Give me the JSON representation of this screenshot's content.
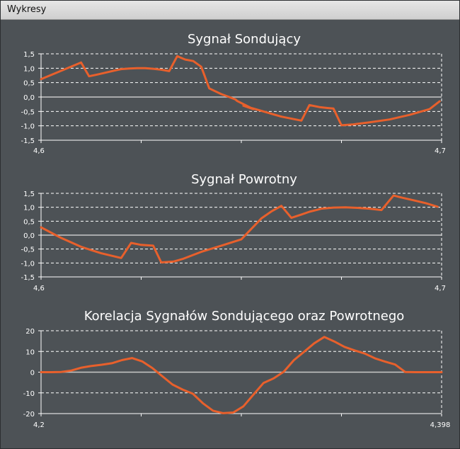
{
  "window": {
    "title": "Wykresy"
  },
  "chart_data": [
    {
      "type": "line",
      "title": "Sygnał Sondujący",
      "xlim": [
        4.6,
        4.7
      ],
      "xticks": [
        "4,6",
        "4,7"
      ],
      "ylim": [
        -1.5,
        1.5
      ],
      "yticks": [
        "1,5",
        "1,0",
        "0,5",
        "0,0",
        "-0,5",
        "-1,0",
        "-1,5"
      ],
      "grid": true,
      "series": [
        {
          "color": "#e8602c",
          "x": [
            4.6,
            4.61,
            4.612,
            4.614,
            4.619,
            4.62,
            4.622,
            4.624,
            4.626,
            4.628,
            4.63,
            4.632,
            4.634,
            4.636,
            4.638,
            4.64,
            4.642,
            4.645,
            4.647,
            4.6485,
            4.649,
            4.651,
            4.653,
            4.6505,
            4.6535,
            4.6555,
            4.66,
            4.665,
            4.667,
            4.6695,
            4.6715,
            4.673,
            4.675,
            4.678,
            4.682,
            4.687,
            4.692,
            4.697,
            4.6995
          ],
          "y": [
            0.62,
            1.2,
            0.72,
            0.78,
            0.94,
            0.97,
            0.99,
            1.0,
            1.0,
            0.98,
            0.95,
            0.9,
            1.42,
            1.3,
            1.25,
            1.05,
            0.3,
            0.1,
            0.0,
            -0.08,
            -0.14,
            -0.28,
            -0.42,
            -0.3,
            -0.42,
            -0.5,
            -0.68,
            -0.82,
            -0.28,
            -0.35,
            -0.38,
            -0.4,
            -0.98,
            -0.95,
            -0.88,
            -0.78,
            -0.62,
            -0.42,
            -0.15
          ]
        }
      ]
    },
    {
      "type": "line",
      "title": "Sygnał Powrotny",
      "xlim": [
        4.6,
        4.7
      ],
      "xticks": [
        "4,6",
        "4,7"
      ],
      "ylim": [
        -1.5,
        1.5
      ],
      "yticks": [
        "1,5",
        "1,0",
        "0,5",
        "0,0",
        "-0,5",
        "-1,0",
        "-1,5"
      ],
      "grid": true,
      "series": [
        {
          "color": "#e8602c",
          "x": [
            4.6,
            4.605,
            4.61,
            4.615,
            4.62,
            4.6225,
            4.625,
            4.628,
            4.63,
            4.633,
            4.6355,
            4.64,
            4.645,
            4.65,
            4.655,
            4.6575,
            4.66,
            4.6625,
            4.665,
            4.667,
            4.669,
            4.67,
            4.673,
            4.676,
            4.679,
            4.682,
            4.685,
            4.688,
            4.69,
            4.693,
            4.696,
            4.699
          ],
          "y": [
            0.28,
            -0.1,
            -0.42,
            -0.65,
            -0.82,
            -0.28,
            -0.35,
            -0.38,
            -0.98,
            -0.95,
            -0.85,
            -0.6,
            -0.38,
            -0.15,
            0.6,
            0.85,
            1.05,
            0.62,
            0.74,
            0.84,
            0.91,
            0.95,
            0.99,
            1.0,
            0.98,
            0.95,
            0.9,
            1.42,
            1.35,
            1.25,
            1.15,
            1.02
          ]
        }
      ]
    },
    {
      "type": "line",
      "title": "Korelacja Sygnałów Sondującego oraz Powrotnego",
      "xlim": [
        4.2,
        4.398
      ],
      "xticks": [
        "4,2",
        "4,398"
      ],
      "ylim": [
        -20,
        20
      ],
      "yticks": [
        "20",
        "10",
        "0",
        "-10",
        "-20"
      ],
      "grid": true,
      "series": [
        {
          "color": "#e8602c",
          "x": [
            4.2,
            4.205,
            4.21,
            4.215,
            4.22,
            4.225,
            4.23,
            4.235,
            4.24,
            4.245,
            4.25,
            4.255,
            4.26,
            4.265,
            4.27,
            4.275,
            4.28,
            4.285,
            4.29,
            4.295,
            4.3,
            4.305,
            4.31,
            4.315,
            4.32,
            4.325,
            4.33,
            4.335,
            4.34,
            4.345,
            4.35,
            4.355,
            4.36,
            4.365,
            4.37,
            4.375,
            4.38,
            4.385,
            4.39,
            4.395,
            4.398
          ],
          "y": [
            0,
            0,
            0.1,
            0.8,
            2.2,
            3.0,
            3.6,
            4.3,
            5.8,
            6.8,
            5.2,
            2.0,
            -2.0,
            -6.0,
            -8.4,
            -10.4,
            -15.0,
            -18.6,
            -19.8,
            -19.5,
            -16.5,
            -10.8,
            -5.2,
            -3.0,
            0.2,
            5.8,
            9.8,
            13.9,
            17.0,
            14.8,
            12.2,
            10.5,
            9.0,
            6.7,
            5.1,
            3.7,
            0.1,
            0,
            0,
            0,
            0
          ]
        }
      ]
    }
  ]
}
